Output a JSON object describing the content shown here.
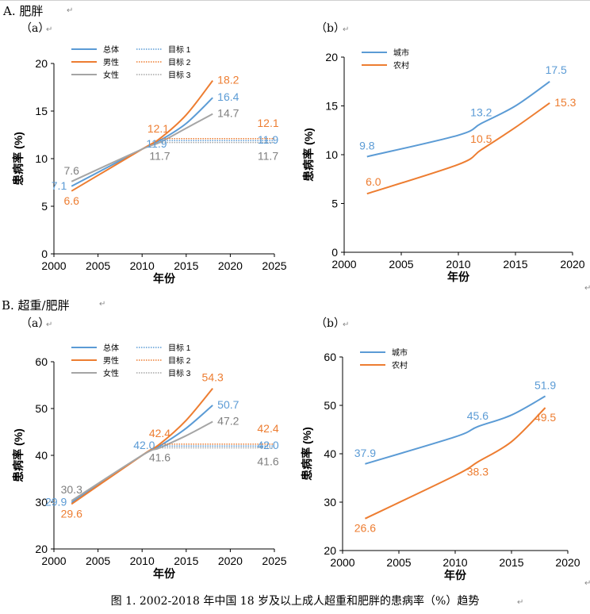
{
  "sections": {
    "A": {
      "label": "A. 肥胖"
    },
    "B": {
      "label": "B. 超重/肥胖"
    }
  },
  "caption": "图 1. 2002-2018 年中国 18 岁及以上成人超重和肥胖的患病率（%）趋势",
  "colors": {
    "total": "#5b9bd5",
    "male": "#ed7d31",
    "female": "#a5a5a5"
  },
  "chart_data": [
    {
      "id": "Aa",
      "panel_label": "（a）",
      "type": "line",
      "xlabel": "年份",
      "ylabel": "患病率 (%)",
      "xlim": [
        2000,
        2025
      ],
      "ylim": [
        0,
        20
      ],
      "xticks": [
        2000,
        2005,
        2010,
        2015,
        2020,
        2025
      ],
      "yticks": [
        0,
        5,
        10,
        15,
        20
      ],
      "legend_position": "top-left",
      "series": [
        {
          "name": "总体",
          "color": "#5b9bd5",
          "style": "solid",
          "x": [
            2002,
            2010,
            2012,
            2015,
            2018
          ],
          "y": [
            7.1,
            11.0,
            11.9,
            13.7,
            16.4
          ]
        },
        {
          "name": "男性",
          "color": "#ed7d31",
          "style": "solid",
          "x": [
            2002,
            2010,
            2012,
            2015,
            2018
          ],
          "y": [
            6.6,
            11.0,
            12.1,
            14.6,
            18.2
          ]
        },
        {
          "name": "女性",
          "color": "#a5a5a5",
          "style": "solid",
          "x": [
            2002,
            2010,
            2012,
            2015,
            2018
          ],
          "y": [
            7.6,
            11.0,
            11.7,
            13.2,
            14.7
          ]
        },
        {
          "name": "目标 1",
          "color": "#5b9bd5",
          "style": "dotted",
          "x": [
            2012,
            2025
          ],
          "y": [
            11.9,
            11.9
          ]
        },
        {
          "name": "目标 2",
          "color": "#ed7d31",
          "style": "dotted",
          "x": [
            2012,
            2025
          ],
          "y": [
            12.1,
            12.1
          ]
        },
        {
          "name": "目标 3",
          "color": "#a5a5a5",
          "style": "dotted",
          "x": [
            2012,
            2025
          ],
          "y": [
            11.7,
            11.7
          ]
        }
      ],
      "data_labels": [
        {
          "text": "7.1",
          "x": 2002,
          "y": 7.1,
          "color": "#5b9bd5",
          "pos": "left"
        },
        {
          "text": "6.6",
          "x": 2002,
          "y": 6.6,
          "color": "#ed7d31",
          "pos": "below"
        },
        {
          "text": "7.6",
          "x": 2002,
          "y": 7.6,
          "color": "#7f7f7f",
          "pos": "above"
        },
        {
          "text": "12.1",
          "x": 2012,
          "y": 12.1,
          "color": "#ed7d31",
          "pos": "above-left"
        },
        {
          "text": "11.9",
          "x": 2012,
          "y": 11.9,
          "color": "#5b9bd5",
          "pos": "below-left"
        },
        {
          "text": "11.7",
          "x": 2012,
          "y": 11.7,
          "color": "#7f7f7f",
          "pos": "below-far"
        },
        {
          "text": "18.2",
          "x": 2018,
          "y": 18.2,
          "color": "#ed7d31",
          "pos": "right"
        },
        {
          "text": "16.4",
          "x": 2018,
          "y": 16.4,
          "color": "#5b9bd5",
          "pos": "right"
        },
        {
          "text": "14.7",
          "x": 2018,
          "y": 14.7,
          "color": "#7f7f7f",
          "pos": "right"
        },
        {
          "text": "12.1",
          "x": 2025,
          "y": 12.1,
          "color": "#ed7d31",
          "pos": "above-end"
        },
        {
          "text": "11.9",
          "x": 2025,
          "y": 11.9,
          "color": "#5b9bd5",
          "pos": "end"
        },
        {
          "text": "11.7",
          "x": 2025,
          "y": 11.7,
          "color": "#7f7f7f",
          "pos": "below-end"
        }
      ]
    },
    {
      "id": "Ab",
      "panel_label": "（b）",
      "type": "line",
      "xlabel": "年份",
      "ylabel": "患病率 (%)",
      "xlim": [
        2000,
        2020
      ],
      "ylim": [
        0,
        20
      ],
      "xticks": [
        2000,
        2005,
        2010,
        2015,
        2020
      ],
      "yticks": [
        0,
        5,
        10,
        15,
        20
      ],
      "legend_position": "top-left",
      "series": [
        {
          "name": "城市",
          "color": "#5b9bd5",
          "style": "solid",
          "x": [
            2002,
            2010,
            2012,
            2015,
            2018
          ],
          "y": [
            9.8,
            12.0,
            13.2,
            15.0,
            17.5
          ]
        },
        {
          "name": "农村",
          "color": "#ed7d31",
          "style": "solid",
          "x": [
            2002,
            2010,
            2012,
            2015,
            2018
          ],
          "y": [
            6.0,
            9.0,
            10.5,
            12.8,
            15.3
          ]
        }
      ],
      "data_labels": [
        {
          "text": "9.8",
          "x": 2002,
          "y": 9.8,
          "color": "#5b9bd5",
          "pos": "above"
        },
        {
          "text": "6.0",
          "x": 2002,
          "y": 6.0,
          "color": "#ed7d31",
          "pos": "above-right"
        },
        {
          "text": "13.2",
          "x": 2012,
          "y": 13.2,
          "color": "#5b9bd5",
          "pos": "above"
        },
        {
          "text": "10.5",
          "x": 2012,
          "y": 10.5,
          "color": "#ed7d31",
          "pos": "above"
        },
        {
          "text": "17.5",
          "x": 2018,
          "y": 17.5,
          "color": "#5b9bd5",
          "pos": "above-right"
        },
        {
          "text": "15.3",
          "x": 2018,
          "y": 15.3,
          "color": "#ed7d31",
          "pos": "right"
        }
      ]
    },
    {
      "id": "Ba",
      "panel_label": "（a）",
      "type": "line",
      "xlabel": "年份",
      "ylabel": "患病率 (%)",
      "xlim": [
        2000,
        2025
      ],
      "ylim": [
        20,
        60
      ],
      "xticks": [
        2000,
        2005,
        2010,
        2015,
        2020,
        2025
      ],
      "yticks": [
        20,
        30,
        40,
        50,
        60
      ],
      "legend_position": "top-left",
      "series": [
        {
          "name": "总体",
          "color": "#5b9bd5",
          "style": "solid",
          "x": [
            2002,
            2010,
            2012,
            2015,
            2018
          ],
          "y": [
            29.9,
            40.0,
            42.0,
            45.8,
            50.7
          ]
        },
        {
          "name": "男性",
          "color": "#ed7d31",
          "style": "solid",
          "x": [
            2002,
            2010,
            2012,
            2015,
            2018
          ],
          "y": [
            29.6,
            40.0,
            42.4,
            47.5,
            54.3
          ]
        },
        {
          "name": "女性",
          "color": "#a5a5a5",
          "style": "solid",
          "x": [
            2002,
            2010,
            2012,
            2015,
            2018
          ],
          "y": [
            30.3,
            40.0,
            41.6,
            44.2,
            47.2
          ]
        },
        {
          "name": "目标 1",
          "color": "#5b9bd5",
          "style": "dotted",
          "x": [
            2012,
            2025
          ],
          "y": [
            42.0,
            42.0
          ]
        },
        {
          "name": "目标 2",
          "color": "#ed7d31",
          "style": "dotted",
          "x": [
            2012,
            2025
          ],
          "y": [
            42.4,
            42.4
          ]
        },
        {
          "name": "目标 3",
          "color": "#a5a5a5",
          "style": "dotted",
          "x": [
            2012,
            2025
          ],
          "y": [
            41.6,
            41.6
          ]
        }
      ],
      "data_labels": [
        {
          "text": "30.3",
          "x": 2002,
          "y": 30.3,
          "color": "#7f7f7f",
          "pos": "above"
        },
        {
          "text": "29.9",
          "x": 2002,
          "y": 29.9,
          "color": "#5b9bd5",
          "pos": "left"
        },
        {
          "text": "29.6",
          "x": 2002,
          "y": 29.6,
          "color": "#ed7d31",
          "pos": "below"
        },
        {
          "text": "42.4",
          "x": 2012,
          "y": 42.4,
          "color": "#ed7d31",
          "pos": "above"
        },
        {
          "text": "42.0",
          "x": 2012,
          "y": 42.0,
          "color": "#5b9bd5",
          "pos": "left"
        },
        {
          "text": "41.6",
          "x": 2012,
          "y": 41.6,
          "color": "#7f7f7f",
          "pos": "below"
        },
        {
          "text": "54.3",
          "x": 2018,
          "y": 54.3,
          "color": "#ed7d31",
          "pos": "above"
        },
        {
          "text": "50.7",
          "x": 2018,
          "y": 50.7,
          "color": "#5b9bd5",
          "pos": "right"
        },
        {
          "text": "47.2",
          "x": 2018,
          "y": 47.2,
          "color": "#7f7f7f",
          "pos": "right"
        },
        {
          "text": "42.4",
          "x": 2025,
          "y": 42.4,
          "color": "#ed7d31",
          "pos": "above-end"
        },
        {
          "text": "42.0",
          "x": 2025,
          "y": 42.0,
          "color": "#5b9bd5",
          "pos": "end"
        },
        {
          "text": "41.6",
          "x": 2025,
          "y": 41.6,
          "color": "#7f7f7f",
          "pos": "below-end"
        }
      ]
    },
    {
      "id": "Bb",
      "panel_label": "（b）",
      "type": "line",
      "xlabel": "年份",
      "ylabel": "患病率 (%)",
      "xlim": [
        2000,
        2020
      ],
      "ylim": [
        20,
        60
      ],
      "xticks": [
        2000,
        2005,
        2010,
        2015,
        2020
      ],
      "yticks": [
        20,
        30,
        40,
        50,
        60
      ],
      "legend_position": "top-left",
      "series": [
        {
          "name": "城市",
          "color": "#5b9bd5",
          "style": "solid",
          "x": [
            2002,
            2010,
            2012,
            2015,
            2018
          ],
          "y": [
            37.9,
            43.5,
            45.6,
            48.0,
            51.9
          ]
        },
        {
          "name": "农村",
          "color": "#ed7d31",
          "style": "solid",
          "x": [
            2002,
            2010,
            2012,
            2015,
            2018
          ],
          "y": [
            26.6,
            35.5,
            38.3,
            42.5,
            49.5
          ]
        }
      ],
      "data_labels": [
        {
          "text": "37.9",
          "x": 2002,
          "y": 37.9,
          "color": "#5b9bd5",
          "pos": "above"
        },
        {
          "text": "26.6",
          "x": 2002,
          "y": 26.6,
          "color": "#ed7d31",
          "pos": "below"
        },
        {
          "text": "45.6",
          "x": 2012,
          "y": 45.6,
          "color": "#5b9bd5",
          "pos": "above"
        },
        {
          "text": "38.3",
          "x": 2012,
          "y": 38.3,
          "color": "#ed7d31",
          "pos": "below"
        },
        {
          "text": "51.9",
          "x": 2018,
          "y": 51.9,
          "color": "#5b9bd5",
          "pos": "above"
        },
        {
          "text": "49.5",
          "x": 2018,
          "y": 49.5,
          "color": "#ed7d31",
          "pos": "below"
        }
      ]
    }
  ]
}
